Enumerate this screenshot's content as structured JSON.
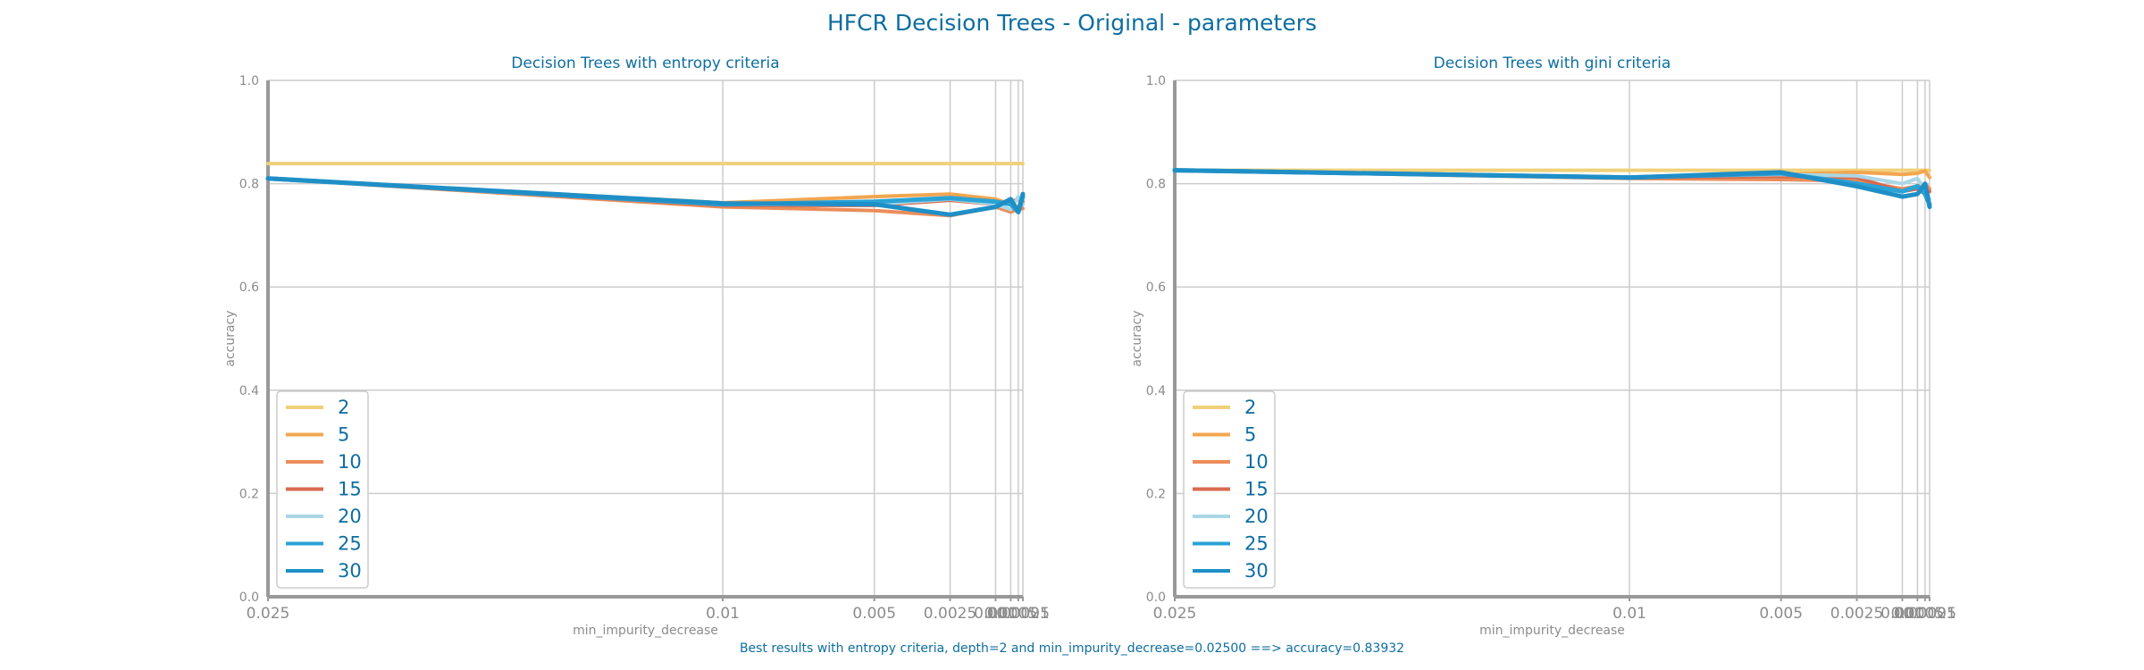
{
  "figure": {
    "title": "HFCR Decision Trees - Original - parameters",
    "caption": "Best results with entropy criteria, depth=2 and min_impurity_decrease=0.02500 ==> accuracy=0.83932"
  },
  "colors": {
    "title": "#0d6ea0",
    "axis": "#999999",
    "grid": "#cccccc",
    "tick_text": "#8c8c8c",
    "series": [
      "#efd17a",
      "#f3a64f",
      "#ec8d5a",
      "#d86a4f",
      "#a9d7e6",
      "#2aa3d6",
      "#1f8fc7"
    ]
  },
  "chart_data": [
    {
      "type": "line",
      "title": "Decision Trees with entropy criteria",
      "xlabel": "min_impurity_decrease",
      "ylabel": "accuracy",
      "x": [
        0.025,
        0.01,
        0.005,
        0.0025,
        0.001,
        0.0005,
        0.00025,
        0.0001
      ],
      "x_tick_labels": [
        "0.025",
        "0.01",
        "0.005",
        "0.0025",
        "0.001",
        "0.0005",
        "0.00025",
        "0.0001"
      ],
      "x_reversed": true,
      "ylim": [
        0,
        1
      ],
      "y_ticks": [
        0.0,
        0.2,
        0.4,
        0.6,
        0.8,
        1.0
      ],
      "grid": true,
      "legend_position": "lower-left",
      "series": [
        {
          "name": "2",
          "values": [
            0.839,
            0.839,
            0.839,
            0.839,
            0.839,
            0.839,
            0.839,
            0.839
          ]
        },
        {
          "name": "5",
          "values": [
            0.81,
            0.763,
            0.775,
            0.78,
            0.77,
            0.76,
            0.755,
            0.76
          ]
        },
        {
          "name": "10",
          "values": [
            0.81,
            0.755,
            0.748,
            0.738,
            0.755,
            0.745,
            0.75,
            0.752
          ]
        },
        {
          "name": "15",
          "values": [
            0.81,
            0.758,
            0.758,
            0.768,
            0.76,
            0.765,
            0.77,
            0.765
          ]
        },
        {
          "name": "20",
          "values": [
            0.81,
            0.76,
            0.76,
            0.77,
            0.76,
            0.75,
            0.775,
            0.76
          ]
        },
        {
          "name": "25",
          "values": [
            0.81,
            0.76,
            0.765,
            0.772,
            0.765,
            0.76,
            0.745,
            0.775
          ]
        },
        {
          "name": "30",
          "values": [
            0.81,
            0.762,
            0.76,
            0.74,
            0.755,
            0.77,
            0.745,
            0.78
          ]
        }
      ]
    },
    {
      "type": "line",
      "title": "Decision Trees with gini criteria",
      "xlabel": "min_impurity_decrease",
      "ylabel": "accuracy",
      "x": [
        0.025,
        0.01,
        0.005,
        0.0025,
        0.001,
        0.0005,
        0.00025,
        0.0001
      ],
      "x_tick_labels": [
        "0.025",
        "0.01",
        "0.005",
        "0.0025",
        "0.001",
        "0.0005",
        "0.00025",
        "0.0001"
      ],
      "x_reversed": true,
      "ylim": [
        0,
        1
      ],
      "y_ticks": [
        0.0,
        0.2,
        0.4,
        0.6,
        0.8,
        1.0
      ],
      "grid": true,
      "legend_position": "lower-left",
      "series": [
        {
          "name": "2",
          "values": [
            0.826,
            0.826,
            0.826,
            0.826,
            0.826,
            0.826,
            0.826,
            0.826
          ]
        },
        {
          "name": "5",
          "values": [
            0.826,
            0.812,
            0.818,
            0.822,
            0.818,
            0.82,
            0.825,
            0.812
          ]
        },
        {
          "name": "10",
          "values": [
            0.826,
            0.81,
            0.808,
            0.805,
            0.79,
            0.795,
            0.8,
            0.79
          ]
        },
        {
          "name": "15",
          "values": [
            0.826,
            0.812,
            0.814,
            0.812,
            0.785,
            0.79,
            0.78,
            0.785
          ]
        },
        {
          "name": "20",
          "values": [
            0.826,
            0.813,
            0.818,
            0.815,
            0.8,
            0.81,
            0.79,
            0.77
          ]
        },
        {
          "name": "25",
          "values": [
            0.826,
            0.812,
            0.82,
            0.8,
            0.785,
            0.795,
            0.78,
            0.76
          ]
        },
        {
          "name": "30",
          "values": [
            0.826,
            0.812,
            0.822,
            0.795,
            0.775,
            0.78,
            0.8,
            0.755
          ]
        }
      ]
    }
  ]
}
